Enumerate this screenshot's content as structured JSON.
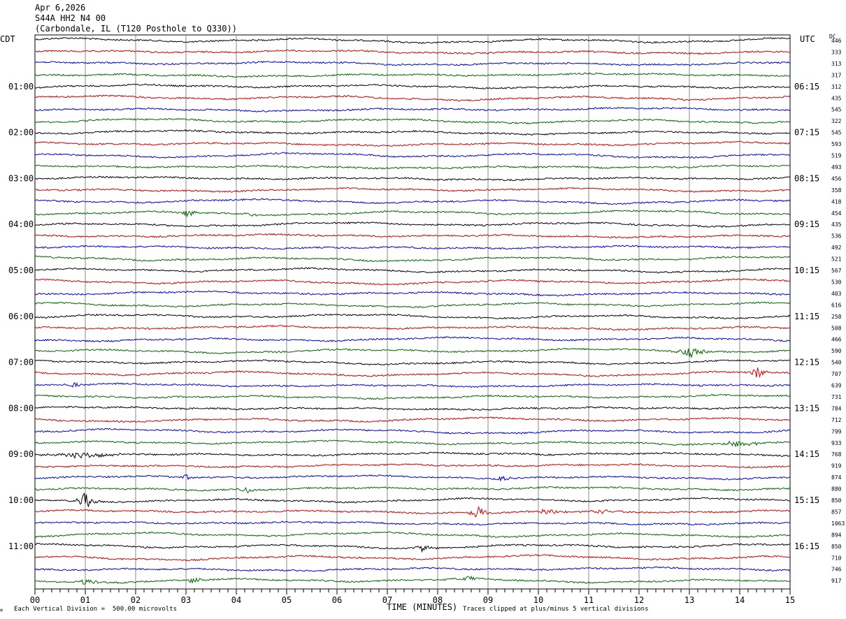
{
  "header": {
    "date": "Apr 6,2026",
    "station": "S44A HH2 N4 00",
    "location": "(Carbondale, IL (T120 Posthole to Q330))"
  },
  "left_tz": "CDT",
  "right_tz": "UTC",
  "dc_label": "DC",
  "footer": {
    "scale_note": "Each Vertical Division =  500.00 microvolts",
    "clip_note": "Traces clipped at plus/minus 5 vertical divisions",
    "xlabel": "TIME (MINUTES)"
  },
  "colors": {
    "cycle": [
      "#000000",
      "#cc0000",
      "#0000cc",
      "#006600"
    ],
    "grid": "#888888"
  },
  "chart_data": {
    "type": "line",
    "xlabel": "TIME (MINUTES)",
    "xlim": [
      0,
      15
    ],
    "x_ticks": [
      "00",
      "01",
      "02",
      "03",
      "04",
      "05",
      "06",
      "07",
      "08",
      "09",
      "10",
      "11",
      "12",
      "13",
      "14",
      "15"
    ],
    "left_labels": [
      {
        "row": 4,
        "text": "01:00"
      },
      {
        "row": 8,
        "text": "02:00"
      },
      {
        "row": 12,
        "text": "03:00"
      },
      {
        "row": 16,
        "text": "04:00"
      },
      {
        "row": 20,
        "text": "05:00"
      },
      {
        "row": 24,
        "text": "06:00"
      },
      {
        "row": 28,
        "text": "07:00"
      },
      {
        "row": 32,
        "text": "08:00"
      },
      {
        "row": 36,
        "text": "09:00"
      },
      {
        "row": 40,
        "text": "10:00"
      },
      {
        "row": 44,
        "text": "11:00"
      }
    ],
    "right_labels": [
      {
        "row": 4,
        "text": "06:15"
      },
      {
        "row": 8,
        "text": "07:15"
      },
      {
        "row": 12,
        "text": "08:15"
      },
      {
        "row": 16,
        "text": "09:15"
      },
      {
        "row": 20,
        "text": "10:15"
      },
      {
        "row": 24,
        "text": "11:15"
      },
      {
        "row": 28,
        "text": "12:15"
      },
      {
        "row": 32,
        "text": "13:15"
      },
      {
        "row": 36,
        "text": "14:15"
      },
      {
        "row": 40,
        "text": "15:15"
      },
      {
        "row": 44,
        "text": "16:15"
      }
    ],
    "dc_values": [
      "446",
      "333",
      "313",
      "317",
      "312",
      "435",
      "545",
      "322",
      "545",
      "593",
      "519",
      "493",
      "456",
      "358",
      "418",
      "454",
      "435",
      "536",
      "492",
      "521",
      "567",
      "530",
      "403",
      "616",
      "258",
      "508",
      "466",
      "590",
      "540",
      "707",
      "639",
      "731",
      "784",
      "712",
      "799",
      "933",
      "768",
      "919",
      "874",
      "880",
      "850",
      "857",
      "1063",
      "894",
      "850",
      "710",
      "746",
      "917"
    ],
    "events": [
      {
        "row": 15,
        "minute": 3.05,
        "amp": 2.2,
        "dur": 0.3
      },
      {
        "row": 15,
        "minute": 4.25,
        "amp": 1.0,
        "dur": 0.3
      },
      {
        "row": 27,
        "minute": 13.0,
        "amp": 2.4,
        "dur": 0.6
      },
      {
        "row": 29,
        "minute": 14.35,
        "amp": 3.2,
        "dur": 0.25
      },
      {
        "row": 30,
        "minute": 0.8,
        "amp": 1.2,
        "dur": 0.3
      },
      {
        "row": 35,
        "minute": 14.0,
        "amp": 1.2,
        "dur": 1.0
      },
      {
        "row": 36,
        "minute": 0.9,
        "amp": 1.3,
        "dur": 1.2
      },
      {
        "row": 38,
        "minute": 3.0,
        "amp": 1.0,
        "dur": 0.3
      },
      {
        "row": 38,
        "minute": 9.25,
        "amp": 1.4,
        "dur": 0.3
      },
      {
        "row": 39,
        "minute": 4.2,
        "amp": 1.5,
        "dur": 0.3
      },
      {
        "row": 40,
        "minute": 1.0,
        "amp": 3.2,
        "dur": 0.35
      },
      {
        "row": 41,
        "minute": 8.8,
        "amp": 3.0,
        "dur": 0.35
      },
      {
        "row": 41,
        "minute": 10.2,
        "amp": 1.5,
        "dur": 0.5
      },
      {
        "row": 41,
        "minute": 11.2,
        "amp": 1.6,
        "dur": 0.5
      },
      {
        "row": 44,
        "minute": 7.7,
        "amp": 1.8,
        "dur": 0.4
      },
      {
        "row": 47,
        "minute": 1.05,
        "amp": 1.6,
        "dur": 0.3
      },
      {
        "row": 47,
        "minute": 3.15,
        "amp": 1.5,
        "dur": 0.3
      },
      {
        "row": 47,
        "minute": 8.6,
        "amp": 1.0,
        "dur": 0.5
      }
    ]
  }
}
